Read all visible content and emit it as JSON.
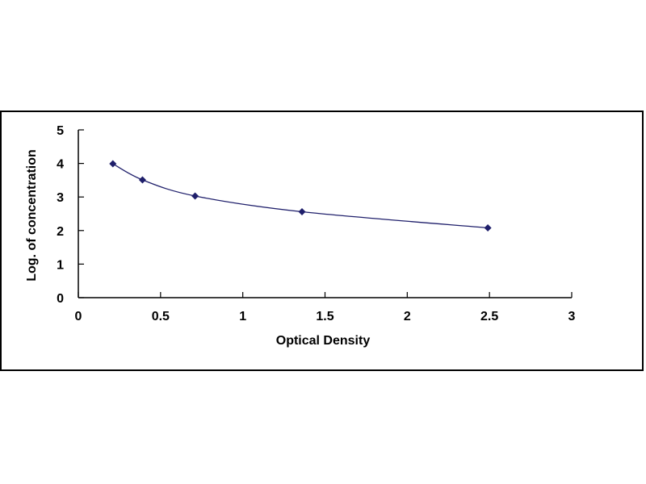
{
  "chart_data": {
    "type": "scatter",
    "title": "",
    "xlabel": "Optical Density",
    "ylabel": "Log. of concentration",
    "xlim": [
      0,
      3
    ],
    "ylim": [
      0,
      5
    ],
    "x_ticks": [
      "0",
      "0.5",
      "1",
      "1.5",
      "2",
      "2.5",
      "3"
    ],
    "y_ticks": [
      "0",
      "1",
      "2",
      "3",
      "4",
      "5"
    ],
    "grid": false,
    "legend": "none",
    "marker_color": "#1f1f6b",
    "line_color": "#1f1f6b",
    "series": [
      {
        "x": [
          0.21,
          0.39,
          0.71,
          1.36,
          2.49
        ],
        "y": [
          3.99,
          3.51,
          3.03,
          2.56,
          2.08
        ]
      }
    ]
  }
}
